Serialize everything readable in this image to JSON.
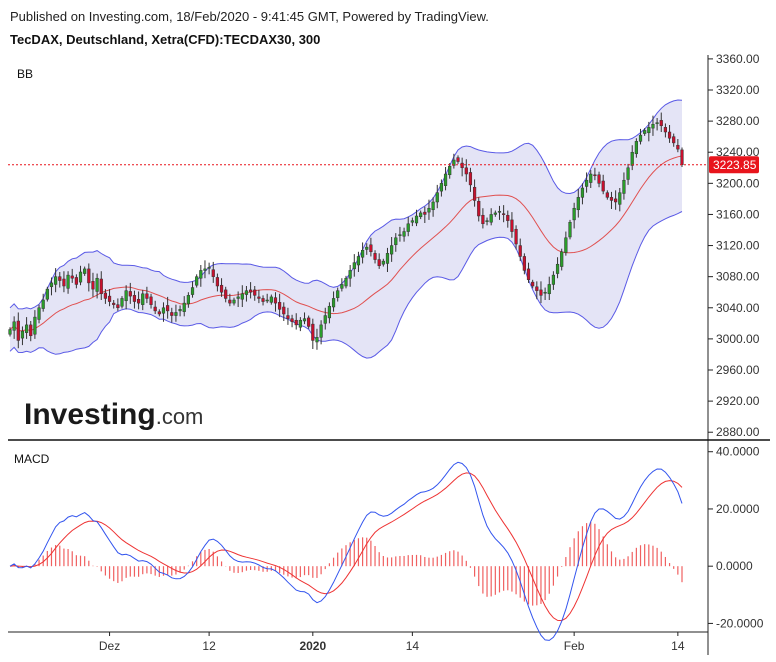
{
  "header": {
    "published": "Published on Investing.com, 18/Feb/2020 - 9:41:45 GMT, Powered by TradingView.",
    "symbol": "TecDAX, Deutschland, Xetra(CFD):TECDAX30, 300"
  },
  "watermark": {
    "brand": "Investing",
    "suffix": ".com"
  },
  "colors": {
    "up": "#2a9d2a",
    "down": "#c8102e",
    "band": "#5a5ae6",
    "band_fill": "#e4e4f6",
    "basis": "#e05050",
    "macd": "#3355ee",
    "signal": "#ee3333",
    "hist": "#f06060",
    "last_price_bg": "#e8141c"
  },
  "chart_data": [
    {
      "type": "candlestick",
      "panel_label": "BB",
      "last_price": "3223.85",
      "ylim": [
        2870,
        3365
      ],
      "yticks": [
        "3360.00",
        "3320.00",
        "3280.00",
        "3240.00",
        "3200.00",
        "3160.00",
        "3120.00",
        "3080.00",
        "3040.00",
        "3000.00",
        "2960.00",
        "2920.00",
        "2880.00"
      ],
      "xticks": [
        {
          "label": "Dez",
          "bar": 24,
          "bold": false
        },
        {
          "label": "12",
          "bar": 48,
          "bold": false
        },
        {
          "label": "2020",
          "bar": 73,
          "bold": true
        },
        {
          "label": "14",
          "bar": 97,
          "bold": false
        },
        {
          "label": "Feb",
          "bar": 136,
          "bold": false
        },
        {
          "label": "14",
          "bar": 161,
          "bold": false
        }
      ],
      "close": [
        3012,
        3022,
        2998,
        3010,
        3018,
        3004,
        3028,
        3040,
        3050,
        3064,
        3072,
        3080,
        3075,
        3068,
        3082,
        3078,
        3070,
        3086,
        3090,
        3072,
        3064,
        3078,
        3058,
        3052,
        3048,
        3044,
        3040,
        3052,
        3062,
        3055,
        3048,
        3046,
        3058,
        3052,
        3044,
        3036,
        3032,
        3040,
        3036,
        3030,
        3034,
        3038,
        3046,
        3056,
        3066,
        3080,
        3088,
        3090,
        3092,
        3080,
        3068,
        3060,
        3052,
        3046,
        3050,
        3054,
        3058,
        3062,
        3060,
        3056,
        3052,
        3048,
        3050,
        3054,
        3046,
        3038,
        3032,
        3026,
        3022,
        3018,
        3024,
        3026,
        3016,
        2998,
        3002,
        3018,
        3030,
        3042,
        3052,
        3062,
        3070,
        3078,
        3088,
        3098,
        3106,
        3114,
        3118,
        3112,
        3102,
        3094,
        3100,
        3110,
        3120,
        3130,
        3134,
        3138,
        3148,
        3152,
        3158,
        3162,
        3160,
        3168,
        3176,
        3188,
        3200,
        3212,
        3222,
        3230,
        3228,
        3220,
        3212,
        3198,
        3178,
        3158,
        3148,
        3152,
        3160,
        3162,
        3164,
        3160,
        3152,
        3138,
        3122,
        3106,
        3088,
        3076,
        3068,
        3062,
        3056,
        3060,
        3070,
        3082,
        3096,
        3112,
        3130,
        3150,
        3168,
        3182,
        3194,
        3204,
        3212,
        3210,
        3200,
        3190,
        3182,
        3178,
        3176,
        3188,
        3204,
        3220,
        3240,
        3254,
        3262,
        3268,
        3272,
        3276,
        3278,
        3274,
        3266,
        3258,
        3252,
        3244,
        3224
      ]
    },
    {
      "type": "macd",
      "panel_label": "MACD",
      "ylim": [
        -23,
        42
      ],
      "yticks": [
        "40.0000",
        "20.0000",
        "0.0000",
        "-20.0000"
      ]
    }
  ]
}
